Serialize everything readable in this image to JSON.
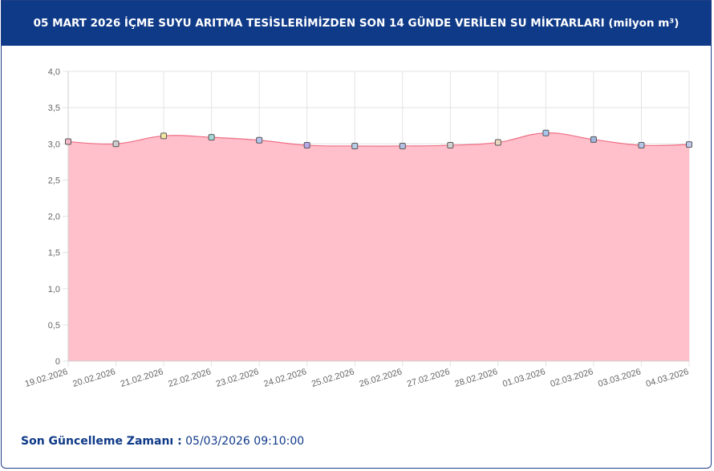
{
  "header": {
    "title": "05 MART 2026 İÇME SUYU ARITMA TESİSLERİMİZDEN SON 14 GÜNDE VERİLEN SU MİKTARLARI (milyon m³)"
  },
  "chart_data": {
    "type": "area",
    "title": "",
    "xlabel": "",
    "ylabel": "",
    "ylim": [
      0,
      4
    ],
    "yticks": [
      "0",
      "0,5",
      "1,0",
      "1,5",
      "2,0",
      "2,5",
      "3,0",
      "3,5",
      "4,0"
    ],
    "ytick_values": [
      0,
      0.5,
      1.0,
      1.5,
      2.0,
      2.5,
      3.0,
      3.5,
      4.0
    ],
    "categories": [
      "19.02.2026",
      "20.02.2026",
      "21.02.2026",
      "22.02.2026",
      "23.02.2026",
      "24.02.2026",
      "25.02.2026",
      "26.02.2026",
      "27.02.2026",
      "28.02.2026",
      "01.03.2026",
      "02.03.2026",
      "03.03.2026",
      "04.03.2026"
    ],
    "values": [
      3.03,
      3.0,
      3.11,
      3.09,
      3.05,
      2.98,
      2.97,
      2.97,
      2.98,
      3.02,
      3.15,
      3.06,
      2.98,
      2.99
    ],
    "grid": true,
    "colors": {
      "fill": "#ffc0cb",
      "line": "#f06e84",
      "grid": "#e3e3e3",
      "marker_stroke": "#555555",
      "marker_fills": [
        "#f4b9c9",
        "#cfcfcf",
        "#f1e7a2",
        "#a7d8d8",
        "#b7c6f0",
        "#b8a9ee",
        "#b9cde6",
        "#b5c2e4",
        "#d4d4d4",
        "#ecd7c1",
        "#a8c8f2",
        "#a1b6dd",
        "#b6c6ea",
        "#bfc7ea"
      ]
    }
  },
  "footer": {
    "label": "Son Güncelleme Zamanı :",
    "value": "05/03/2026 09:10:00"
  }
}
